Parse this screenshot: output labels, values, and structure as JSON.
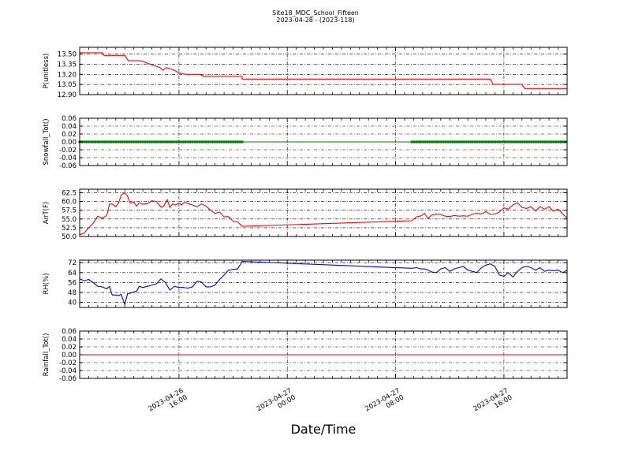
{
  "header": {
    "title": "Site18_MDC_School_Fifteen",
    "subtitle": "2023-04-28 - (2023-118)"
  },
  "chart_data": {
    "type": "line",
    "xlabel": "Date/Time",
    "x_range_hours": [
      0,
      54
    ],
    "x_ticks": [
      {
        "hours": 11,
        "label1": "2023-04-26",
        "label2": "16:00"
      },
      {
        "hours": 23,
        "label1": "2023-04-27",
        "label2": "00:00"
      },
      {
        "hours": 35,
        "label1": "2023-04-27",
        "label2": "08:00"
      },
      {
        "hours": 47,
        "label1": "2023-04-27",
        "label2": "16:00"
      }
    ],
    "panels": [
      {
        "ylabel": "P(unitless)",
        "color": "#ff0000",
        "ylim": [
          12.9,
          13.6
        ],
        "yticks": [
          "13.50",
          "13.35",
          "13.20",
          "13.05",
          "12.90"
        ],
        "ytick_values": [
          13.5,
          13.35,
          13.2,
          13.05,
          12.9
        ],
        "markers": false,
        "x": [
          0,
          2.5,
          2.7,
          5,
          5.4,
          6.8,
          7.8,
          8.9,
          9.2,
          9.6,
          10.5,
          11,
          11.8,
          13.3,
          13.8,
          18,
          18,
          45.5,
          45.8,
          49,
          49.3,
          54
        ],
        "y": [
          13.52,
          13.52,
          13.48,
          13.48,
          13.4,
          13.4,
          13.35,
          13.3,
          13.26,
          13.3,
          13.26,
          13.22,
          13.2,
          13.2,
          13.17,
          13.17,
          13.13,
          13.13,
          13.05,
          13.05,
          12.99,
          12.99
        ]
      },
      {
        "ylabel": "Snowfall_Tot()",
        "color": "#008000",
        "ylim": [
          -0.06,
          0.06
        ],
        "yticks": [
          "0.06",
          "0.04",
          "0.02",
          "0.00",
          "-0.02",
          "-0.04",
          "-0.06"
        ],
        "ytick_values": [
          0.06,
          0.04,
          0.02,
          0.0,
          -0.02,
          -0.04,
          -0.06
        ],
        "markers": true,
        "x": [
          0,
          18,
          36.8,
          54
        ],
        "y": [
          0,
          0,
          0,
          0
        ],
        "marker_ranges": [
          [
            0,
            18
          ],
          [
            36.8,
            54
          ]
        ]
      },
      {
        "ylabel": "AirT(F)",
        "color": "#ff0000",
        "ylim": [
          50.0,
          63.5
        ],
        "yticks": [
          "62.5",
          "60.0",
          "57.5",
          "55.0",
          "52.5",
          "50.0"
        ],
        "ytick_values": [
          62.5,
          60.0,
          57.5,
          55.0,
          52.5,
          50.0
        ],
        "markers": false,
        "x": [
          0,
          0.5,
          1,
          1.5,
          2,
          2.5,
          3,
          3.3,
          3.6,
          4,
          4.3,
          4.6,
          5,
          5.3,
          5.6,
          6,
          6.3,
          6.6,
          7,
          7.5,
          8,
          8.5,
          9,
          9.3,
          9.7,
          10,
          10.3,
          10.6,
          11,
          11.3,
          11.6,
          12,
          12.5,
          13,
          13.5,
          14,
          14.5,
          15,
          15.5,
          16,
          16.5,
          17,
          17.5,
          18,
          36.8,
          37.3,
          37.8,
          38.2,
          38.6,
          39,
          39.5,
          40,
          40.5,
          41,
          41.5,
          42,
          42.5,
          43,
          43.5,
          44,
          44.5,
          45,
          45.5,
          46,
          46.5,
          47,
          47.5,
          48,
          48.5,
          49,
          49.5,
          50,
          50.5,
          51,
          51.5,
          52,
          52.5,
          53,
          53.5,
          54
        ],
        "y": [
          50.5,
          51.0,
          52.5,
          53.8,
          55.8,
          55.2,
          56.0,
          59.2,
          59.3,
          58.5,
          59.5,
          61.8,
          62.5,
          61.5,
          59.5,
          59.8,
          58.7,
          59.6,
          59.2,
          59.4,
          60.2,
          60.0,
          58.4,
          58.6,
          60.5,
          58.3,
          59.3,
          59.0,
          59.5,
          59.0,
          59.8,
          59.4,
          59.0,
          58.5,
          59.3,
          58.7,
          57.5,
          56.6,
          57.0,
          55.6,
          55.7,
          54.3,
          54.2,
          52.9,
          54.5,
          55.6,
          55.9,
          56.6,
          55.2,
          56.1,
          56.4,
          56.3,
          55.8,
          55.7,
          56.0,
          55.8,
          55.9,
          55.8,
          56.4,
          56.6,
          56.4,
          57.1,
          56.3,
          56.4,
          57.0,
          58.2,
          57.8,
          59.0,
          59.6,
          58.3,
          58.0,
          58.5,
          57.3,
          58.5,
          57.8,
          58.5,
          57.2,
          57.8,
          56.5,
          55.2
        ]
      },
      {
        "ylabel": "RH(%)",
        "color": "#0000ff",
        "ylim": [
          36,
          74
        ],
        "yticks": [
          "72",
          "64",
          "56",
          "48",
          "40"
        ],
        "ytick_values": [
          72,
          64,
          56,
          48,
          40
        ],
        "markers": false,
        "x": [
          0,
          0.5,
          1,
          1.5,
          2,
          2.5,
          3,
          3.3,
          3.6,
          4,
          4.3,
          4.6,
          5,
          5.3,
          5.6,
          6,
          6.3,
          6.6,
          7,
          7.5,
          8,
          8.5,
          9,
          9.5,
          10,
          10.5,
          11,
          11.5,
          12,
          12.5,
          13,
          13.5,
          14,
          14.5,
          15,
          15.5,
          16,
          16.5,
          17,
          17.5,
          18,
          36.8,
          37.3,
          37.8,
          38.2,
          38.6,
          39,
          39.5,
          40,
          40.5,
          41,
          41.5,
          42,
          42.5,
          43,
          43.5,
          44,
          44.5,
          45,
          45.5,
          46,
          46.5,
          47,
          47.5,
          48,
          48.5,
          49,
          49.5,
          50,
          50.5,
          51,
          51.5,
          52,
          52.5,
          53,
          53.5,
          54
        ],
        "y": [
          59,
          57.5,
          58.5,
          56,
          53,
          52.5,
          51,
          53,
          46,
          46,
          45.5,
          46.5,
          38.5,
          47,
          47.5,
          48.5,
          49,
          53,
          52,
          53,
          54,
          55,
          59,
          56,
          50,
          53,
          52,
          52,
          51.5,
          52.5,
          57,
          56.5,
          52.5,
          52.5,
          54,
          58.5,
          62,
          66,
          66.5,
          67,
          73,
          67.5,
          68,
          67,
          67,
          66,
          64.5,
          64,
          67,
          68,
          65,
          67,
          68,
          69,
          66,
          65,
          64,
          68,
          70,
          71,
          69,
          62,
          61,
          64,
          60.5,
          65,
          68,
          69,
          68,
          66,
          68,
          65,
          66,
          65.5,
          66,
          64,
          66
        ]
      },
      {
        "ylabel": "Rainfall_Tot()",
        "color": "#ff0000",
        "ylim": [
          -0.06,
          0.06
        ],
        "yticks": [
          "0.06",
          "0.04",
          "0.02",
          "0.00",
          "-0.02",
          "-0.04",
          "-0.06"
        ],
        "ytick_values": [
          0.06,
          0.04,
          0.02,
          0.0,
          -0.02,
          -0.04,
          -0.06
        ],
        "markers": false,
        "x": [
          0,
          54
        ],
        "y": [
          0,
          0
        ]
      }
    ]
  }
}
